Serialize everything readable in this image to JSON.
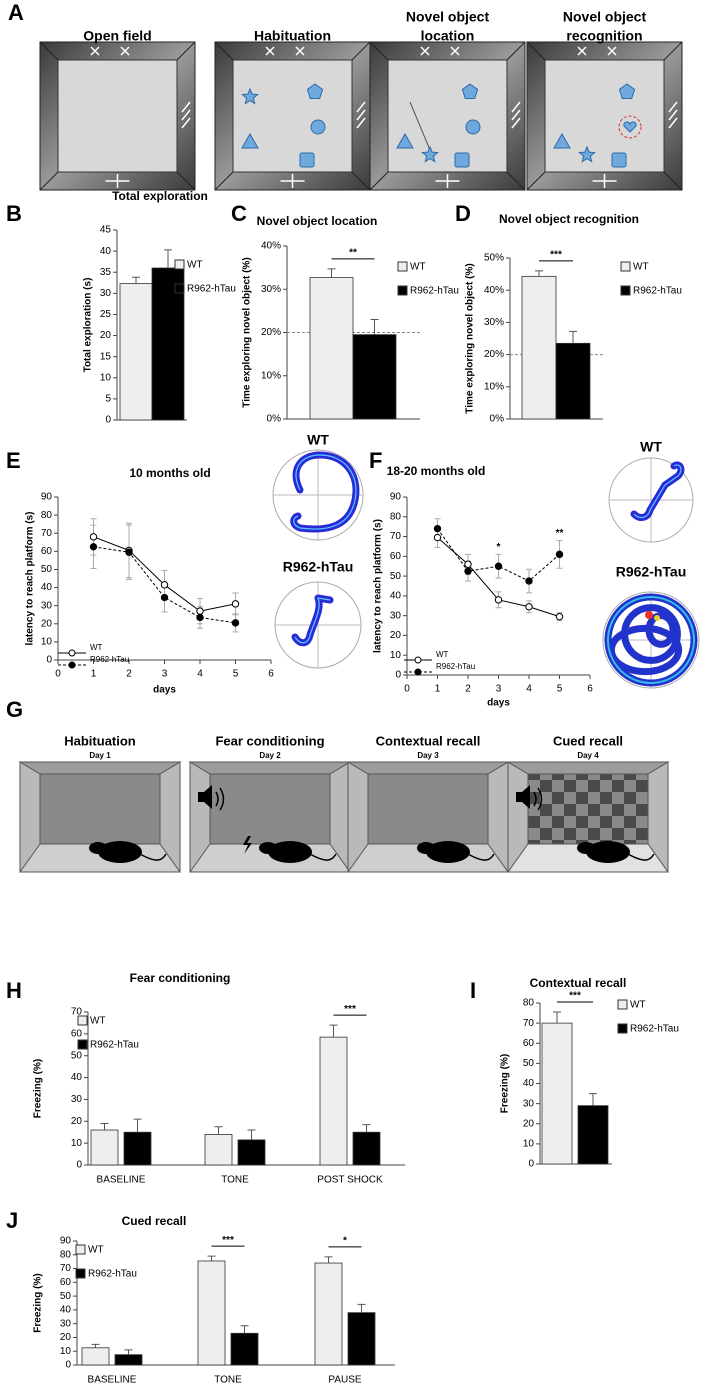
{
  "figure": {
    "panel_labels": [
      "A",
      "B",
      "C",
      "D",
      "E",
      "F",
      "G",
      "H",
      "I",
      "J"
    ],
    "a_titles": [
      [
        "Open field"
      ],
      [
        "Habituation"
      ],
      [
        "Novel object",
        "location"
      ],
      [
        "Novel object",
        "recognition"
      ]
    ],
    "e_heatmaps": [
      "WT",
      "R962-hTau"
    ],
    "f_heatmaps": [
      "WT",
      "R962-hTau"
    ],
    "g_stages": [
      {
        "title": "Habituation",
        "day": "Day 1"
      },
      {
        "title": "Fear conditioning",
        "day": "Day 2"
      },
      {
        "title": "Contextual recall",
        "day": "Day 3"
      },
      {
        "title": "Cued recall",
        "day": "Day 4"
      }
    ]
  },
  "chart_data": [
    {
      "type": "bar",
      "title": "Total exploration",
      "ylabel": "Total exploration (s)",
      "categories": [
        null
      ],
      "series": [
        {
          "name": "WT",
          "color": "#eeeeee",
          "values": [
            32.3
          ],
          "errors": [
            1.5
          ]
        },
        {
          "name": "R962-hTau",
          "color": "#000000",
          "values": [
            36
          ],
          "errors": [
            4.3
          ]
        }
      ],
      "ylim": [
        0,
        45
      ],
      "yticks": [
        0,
        5,
        10,
        15,
        20,
        25,
        30,
        35,
        40,
        45
      ],
      "legend": "right"
    },
    {
      "type": "bar",
      "title": "Novel object location",
      "ylabel": "Time exploring novel object (%)",
      "categories": [
        null
      ],
      "series": [
        {
          "name": "WT",
          "color": "#eeeeee",
          "values": [
            32.7
          ],
          "errors": [
            2
          ]
        },
        {
          "name": "R962-hTau",
          "color": "#000000",
          "values": [
            19.5
          ],
          "errors": [
            3.5
          ]
        }
      ],
      "ylim": [
        0,
        40
      ],
      "yticks": [
        {
          "value": 0,
          "label": "0%"
        },
        {
          "value": 10,
          "label": "10%"
        },
        {
          "value": 20,
          "label": "20%"
        },
        {
          "value": 30,
          "label": "30%"
        },
        {
          "value": 40,
          "label": "40%"
        }
      ],
      "reference_line": 20,
      "significance": [
        "**"
      ],
      "legend": "right"
    },
    {
      "type": "bar",
      "title": "Novel object recognition",
      "ylabel": "Time exploring novel object (%)",
      "categories": [
        null
      ],
      "series": [
        {
          "name": "WT",
          "color": "#eeeeee",
          "values": [
            44.3
          ],
          "errors": [
            1.7
          ]
        },
        {
          "name": "R962-hTau",
          "color": "#000000",
          "values": [
            23.5
          ],
          "errors": [
            3.7
          ]
        }
      ],
      "ylim": [
        0,
        50
      ],
      "yticks": [
        {
          "value": 0,
          "label": "0%"
        },
        {
          "value": 10,
          "label": "10%"
        },
        {
          "value": 20,
          "label": "20%"
        },
        {
          "value": 30,
          "label": "30%"
        },
        {
          "value": 40,
          "label": "40%"
        },
        {
          "value": 50,
          "label": "50%"
        }
      ],
      "reference_line": 20,
      "significance": [
        "***"
      ],
      "legend": "right"
    },
    {
      "type": "line",
      "title": "10 months old",
      "xlabel": "days",
      "ylabel": "latency to reach platform (s)",
      "x": [
        1,
        2,
        3,
        4,
        5
      ],
      "series": [
        {
          "name": "WT",
          "color": "#000000",
          "line_style": "solid",
          "marker_fill": "#ffffff",
          "values": [
            68,
            60.5,
            41.5,
            27,
            31
          ],
          "errors": [
            10,
            15,
            8,
            7,
            6
          ]
        },
        {
          "name": "R962-hTau",
          "color": "#000000",
          "line_style": "dashed",
          "marker_fill": "#000000",
          "values": [
            62.5,
            59.5,
            34.5,
            23.5,
            20.5
          ],
          "errors": [
            12,
            15,
            8,
            6,
            5
          ]
        }
      ],
      "xlim": [
        0,
        6
      ],
      "xticks": [
        0,
        1,
        2,
        3,
        4,
        5,
        6
      ],
      "ylim": [
        0,
        90
      ],
      "yticks": [
        0,
        10,
        20,
        30,
        40,
        50,
        60,
        70,
        80,
        90
      ],
      "legend": "lower left"
    },
    {
      "type": "line",
      "title": "18-20 months old",
      "xlabel": "days",
      "ylabel": "latency to reach platform (s)",
      "x": [
        1,
        2,
        3,
        4,
        5
      ],
      "series": [
        {
          "name": "WT",
          "color": "#000000",
          "line_style": "solid",
          "marker_fill": "#ffffff",
          "values": [
            69.5,
            56,
            38,
            34.5,
            29.5
          ],
          "errors": [
            5,
            5,
            4,
            3,
            2
          ]
        },
        {
          "name": "R962-hTau",
          "color": "#000000",
          "line_style": "dashed",
          "marker_fill": "#000000",
          "values": [
            74,
            52.5,
            55,
            47.5,
            61
          ],
          "errors": [
            5,
            5,
            6,
            6,
            7
          ]
        }
      ],
      "xlim": [
        0,
        6
      ],
      "xticks": [
        0,
        1,
        2,
        3,
        4,
        5,
        6
      ],
      "ylim": [
        0,
        90
      ],
      "yticks": [
        0,
        10,
        20,
        30,
        40,
        50,
        60,
        70,
        80,
        90
      ],
      "significance": [
        null,
        null,
        "*",
        null,
        "**"
      ],
      "legend": "lower left"
    },
    {
      "type": "bar",
      "title": "Fear conditioning",
      "ylabel": "Freezing (%)",
      "categories": [
        "BASELINE",
        "TONE",
        "POST SHOCK"
      ],
      "series": [
        {
          "name": "WT",
          "color": "#eeeeee",
          "values": [
            16,
            14,
            58.5
          ],
          "errors": [
            3,
            3.5,
            5.5
          ]
        },
        {
          "name": "R962-hTau",
          "color": "#000000",
          "values": [
            15,
            11.5,
            15
          ],
          "errors": [
            6,
            4.5,
            3.5
          ]
        }
      ],
      "ylim": [
        0,
        70
      ],
      "yticks": [
        0,
        10,
        20,
        30,
        40,
        50,
        60,
        70
      ],
      "significance": [
        null,
        null,
        "***"
      ],
      "legend": "upper left"
    },
    {
      "type": "bar",
      "title": "Contextual recall",
      "ylabel": "Freezing (%)",
      "categories": [
        null
      ],
      "series": [
        {
          "name": "WT",
          "color": "#eeeeee",
          "values": [
            70
          ],
          "errors": [
            5.5
          ]
        },
        {
          "name": "R962-hTau",
          "color": "#000000",
          "values": [
            29
          ],
          "errors": [
            6
          ]
        }
      ],
      "ylim": [
        0,
        80
      ],
      "yticks": [
        0,
        10,
        20,
        30,
        40,
        50,
        60,
        70,
        80
      ],
      "significance": [
        "***"
      ],
      "legend": "right"
    },
    {
      "type": "bar",
      "title": "Cued recall",
      "ylabel": "Freezing (%)",
      "categories": [
        "BASELINE",
        "TONE",
        "PAUSE"
      ],
      "series": [
        {
          "name": "WT",
          "color": "#eeeeee",
          "values": [
            12.5,
            75.5,
            74
          ],
          "errors": [
            2.5,
            3.5,
            4.5
          ]
        },
        {
          "name": "R962-hTau",
          "color": "#000000",
          "values": [
            7.5,
            23,
            38
          ],
          "errors": [
            3.5,
            5.5,
            6
          ]
        }
      ],
      "ylim": [
        0,
        90
      ],
      "yticks": [
        0,
        10,
        20,
        30,
        40,
        50,
        60,
        70,
        80,
        90
      ],
      "significance": [
        null,
        "***",
        "*"
      ],
      "legend": "upper left"
    }
  ]
}
